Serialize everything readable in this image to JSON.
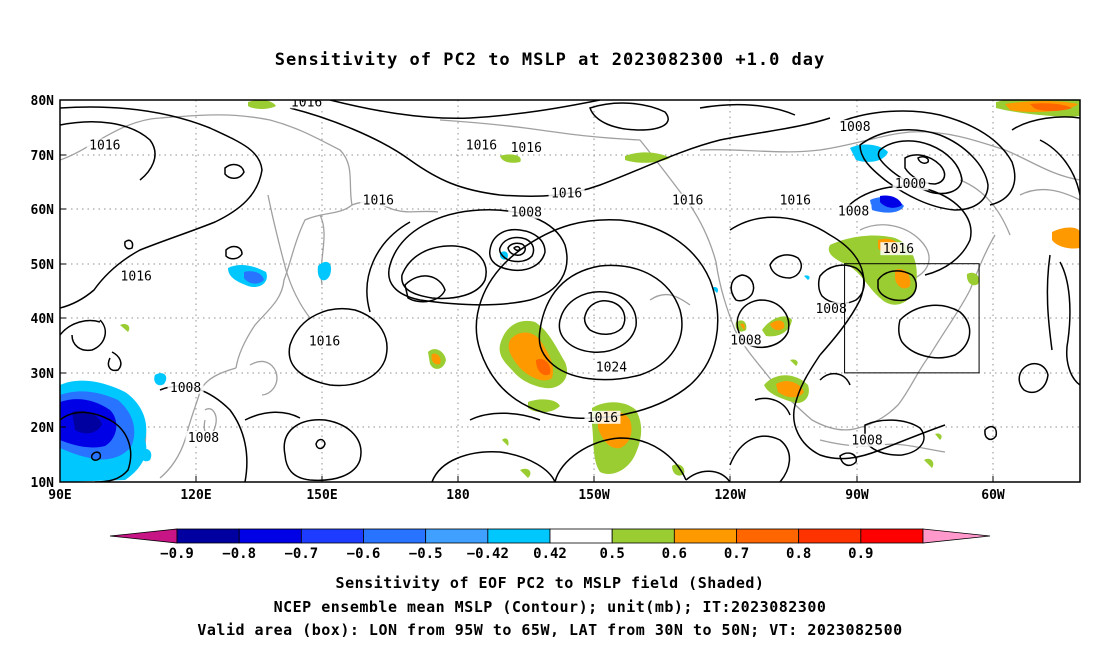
{
  "title": "Sensitivity of PC2 to MSLP at 2023082300 +1.0 day",
  "lat_ticks": [
    "80N",
    "70N",
    "60N",
    "50N",
    "40N",
    "30N",
    "20N",
    "10N"
  ],
  "lon_ticks": [
    "90E",
    "120E",
    "150E",
    "180",
    "150W",
    "120W",
    "90W",
    "60W"
  ],
  "contour_labels": [
    {
      "text": "1016",
      "lon": 145,
      "lat": 79.2
    },
    {
      "text": "1016",
      "lon": 100,
      "lat": 71.3
    },
    {
      "text": "1016",
      "lon": 161,
      "lat": 61.2
    },
    {
      "text": "1016",
      "lon": -176,
      "lat": 71.3
    },
    {
      "text": "1016",
      "lon": -166,
      "lat": 70.8
    },
    {
      "text": "1016",
      "lon": -157,
      "lat": 62.5
    },
    {
      "text": "1008",
      "lon": -166,
      "lat": 59
    },
    {
      "text": "1016",
      "lon": -130,
      "lat": 61.2
    },
    {
      "text": "1016",
      "lon": 107,
      "lat": 47.3
    },
    {
      "text": "1016",
      "lon": 149,
      "lat": 35.4
    },
    {
      "text": "1024",
      "lon": -147,
      "lat": 30.6
    },
    {
      "text": "1016",
      "lon": -149,
      "lat": 21.4
    },
    {
      "text": "1008",
      "lon": 118,
      "lat": 26.9
    },
    {
      "text": "1008",
      "lon": 122,
      "lat": 17.7
    },
    {
      "text": "1008",
      "lon": -92.7,
      "lat": 74.7
    },
    {
      "text": "1000",
      "lon": -80.3,
      "lat": 64.2
    },
    {
      "text": "1008",
      "lon": -93,
      "lat": 59.2
    },
    {
      "text": "1016",
      "lon": -106,
      "lat": 61.2
    },
    {
      "text": "1016",
      "lon": -83,
      "lat": 52.3
    },
    {
      "text": "1008",
      "lon": -98,
      "lat": 41.3
    },
    {
      "text": "1008",
      "lon": -117,
      "lat": 35.6
    },
    {
      "text": "1008",
      "lon": -90,
      "lat": 17.2
    }
  ],
  "colorbar_labels": [
    "−0.9",
    "−0.8",
    "−0.7",
    "−0.6",
    "−0.5",
    "−0.42",
    "0.42",
    "0.5",
    "0.6",
    "0.7",
    "0.8",
    "0.9"
  ],
  "colorbar_colors": [
    "#c71585",
    "#0000a0",
    "#0000e6",
    "#1e3cff",
    "#2873ff",
    "#3fa0ff",
    "#00c8ff",
    "#ffffff",
    "#9acd32",
    "#ff9900",
    "#ff6600",
    "#ff3300",
    "#ff0000",
    "#ff99cc"
  ],
  "box": {
    "lon_w": -95,
    "lon_e": -65,
    "lat_s": 30,
    "lat_n": 50
  },
  "caption_line1": "Sensitivity of EOF PC2 to MSLP field (Shaded)",
  "caption_line2": "NCEP ensemble mean MSLP (Contour); unit(mb); IT:2023082300",
  "caption_line3": "Valid area (box): LON from 95W to 65W, LAT from 30N to 50N; VT: 2023082500"
}
